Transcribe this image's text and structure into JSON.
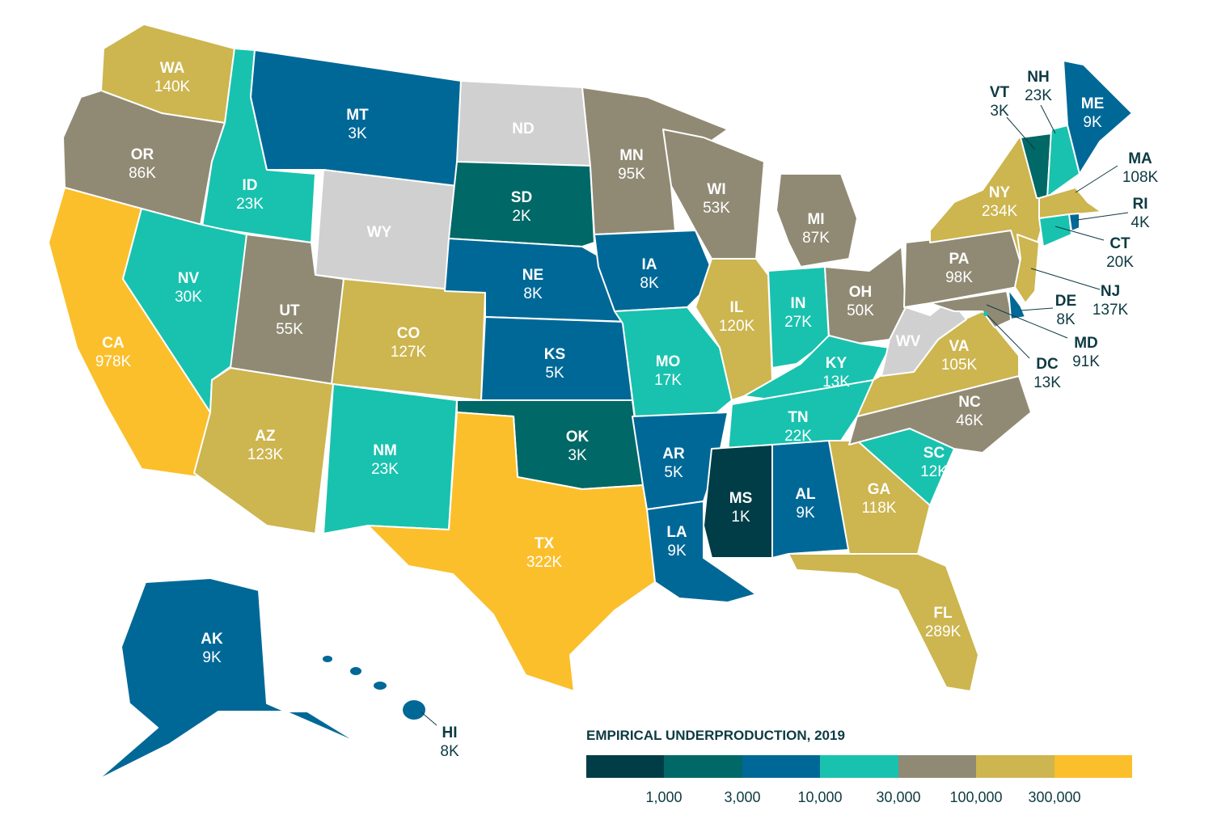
{
  "title": "EMPIRICAL UNDERPRODUCTION, 2019",
  "legend": {
    "colors": [
      "#003d47",
      "#006866",
      "#006897",
      "#18c2ae",
      "#908a74",
      "#cdb54f",
      "#fbbf2b"
    ],
    "ticks": [
      "1,000",
      "3,000",
      "10,000",
      "30,000",
      "100,000",
      "300,000"
    ]
  },
  "no_data_color": "#d0d0d0",
  "states": {
    "WA": {
      "abbr": "WA",
      "value": "140K"
    },
    "OR": {
      "abbr": "OR",
      "value": "86K"
    },
    "CA": {
      "abbr": "CA",
      "value": "978K"
    },
    "ID": {
      "abbr": "ID",
      "value": "23K"
    },
    "NV": {
      "abbr": "NV",
      "value": "30K"
    },
    "MT": {
      "abbr": "MT",
      "value": "3K"
    },
    "WY": {
      "abbr": "WY",
      "value": ""
    },
    "UT": {
      "abbr": "UT",
      "value": "55K"
    },
    "CO": {
      "abbr": "CO",
      "value": "127K"
    },
    "AZ": {
      "abbr": "AZ",
      "value": "123K"
    },
    "NM": {
      "abbr": "NM",
      "value": "23K"
    },
    "ND": {
      "abbr": "ND",
      "value": ""
    },
    "SD": {
      "abbr": "SD",
      "value": "2K"
    },
    "NE": {
      "abbr": "NE",
      "value": "8K"
    },
    "KS": {
      "abbr": "KS",
      "value": "5K"
    },
    "OK": {
      "abbr": "OK",
      "value": "3K"
    },
    "TX": {
      "abbr": "TX",
      "value": "322K"
    },
    "MN": {
      "abbr": "MN",
      "value": "95K"
    },
    "IA": {
      "abbr": "IA",
      "value": "8K"
    },
    "MO": {
      "abbr": "MO",
      "value": "17K"
    },
    "AR": {
      "abbr": "AR",
      "value": "5K"
    },
    "LA": {
      "abbr": "LA",
      "value": "9K"
    },
    "WI": {
      "abbr": "WI",
      "value": "53K"
    },
    "IL": {
      "abbr": "IL",
      "value": "120K"
    },
    "MI": {
      "abbr": "MI",
      "value": "87K"
    },
    "IN": {
      "abbr": "IN",
      "value": "27K"
    },
    "OH": {
      "abbr": "OH",
      "value": "50K"
    },
    "KY": {
      "abbr": "KY",
      "value": "13K"
    },
    "TN": {
      "abbr": "TN",
      "value": "22K"
    },
    "MS": {
      "abbr": "MS",
      "value": "1K"
    },
    "AL": {
      "abbr": "AL",
      "value": "9K"
    },
    "GA": {
      "abbr": "GA",
      "value": "118K"
    },
    "FL": {
      "abbr": "FL",
      "value": "289K"
    },
    "SC": {
      "abbr": "SC",
      "value": "12K"
    },
    "NC": {
      "abbr": "NC",
      "value": "46K"
    },
    "VA": {
      "abbr": "VA",
      "value": "105K"
    },
    "WV": {
      "abbr": "WV",
      "value": ""
    },
    "PA": {
      "abbr": "PA",
      "value": "98K"
    },
    "NY": {
      "abbr": "NY",
      "value": "234K"
    },
    "VT": {
      "abbr": "VT",
      "value": "3K"
    },
    "NH": {
      "abbr": "NH",
      "value": "23K"
    },
    "ME": {
      "abbr": "ME",
      "value": "9K"
    },
    "MA": {
      "abbr": "MA",
      "value": "108K"
    },
    "CT": {
      "abbr": "CT",
      "value": "20K"
    },
    "RI": {
      "abbr": "RI",
      "value": "4K"
    },
    "NJ": {
      "abbr": "NJ",
      "value": "137K"
    },
    "DE": {
      "abbr": "DE",
      "value": "8K"
    },
    "MD": {
      "abbr": "MD",
      "value": "91K"
    },
    "DC": {
      "abbr": "DC",
      "value": "13K"
    },
    "AK": {
      "abbr": "AK",
      "value": "9K"
    },
    "HI": {
      "abbr": "HI",
      "value": "8K"
    }
  }
}
